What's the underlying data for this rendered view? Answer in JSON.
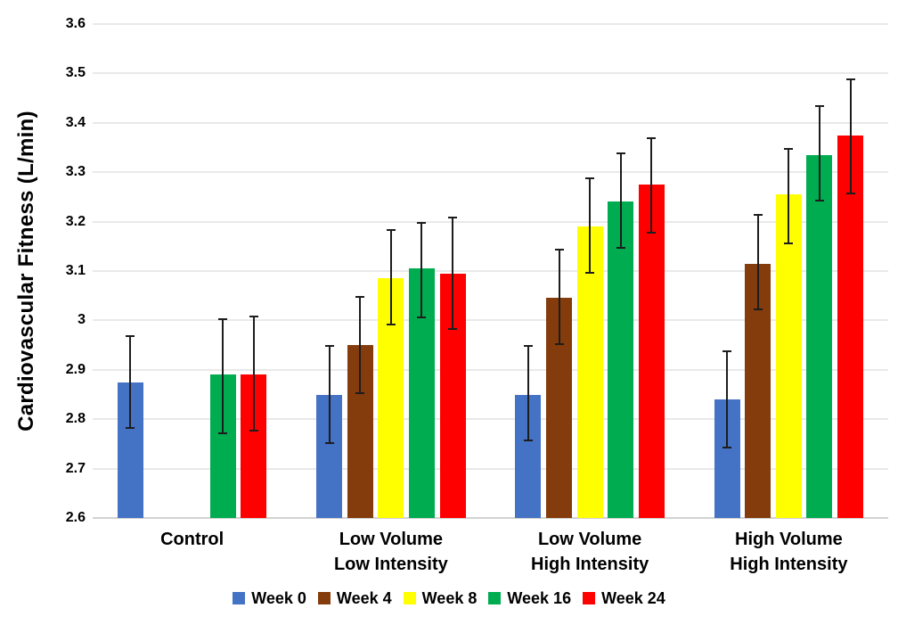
{
  "chart_data": {
    "type": "bar",
    "title": "",
    "ylabel": "Cardiovascular Fitness (L/min)",
    "xlabel": "",
    "ylim": [
      2.6,
      3.6
    ],
    "ytick_step": 0.1,
    "yticks": [
      "3.6",
      "3.5",
      "3.4",
      "3.3",
      "3.2",
      "3.1",
      "3",
      "2.9",
      "2.8",
      "2.7",
      "2.6"
    ],
    "grid": true,
    "legend_position": "bottom",
    "error_bars": true,
    "categories": [
      [
        "Control"
      ],
      [
        "Low Volume",
        "Low Intensity"
      ],
      [
        "Low Volume",
        "High Intensity"
      ],
      [
        "High Volume",
        "High Intensity"
      ]
    ],
    "series": [
      {
        "name": "Week 0",
        "color": "#4472C4",
        "values": [
          2.875,
          2.85,
          2.85,
          2.84
        ],
        "err_low": [
          2.78,
          2.75,
          2.755,
          2.74
        ],
        "err_high": [
          2.97,
          2.95,
          2.95,
          2.94
        ]
      },
      {
        "name": "Week 4",
        "color": "#843C0C",
        "values": [
          null,
          2.95,
          3.045,
          3.115
        ],
        "err_low": [
          null,
          2.85,
          2.95,
          3.02
        ],
        "err_high": [
          null,
          3.05,
          3.145,
          3.215
        ]
      },
      {
        "name": "Week 8",
        "color": "#FFFF00",
        "values": [
          null,
          3.085,
          3.19,
          3.255
        ],
        "err_low": [
          null,
          2.99,
          3.095,
          3.155
        ],
        "err_high": [
          null,
          3.185,
          3.29,
          3.35
        ]
      },
      {
        "name": "Week 16",
        "color": "#00AC50",
        "values": [
          2.89,
          3.105,
          3.24,
          3.335
        ],
        "err_low": [
          2.77,
          3.005,
          3.145,
          3.24
        ],
        "err_high": [
          3.005,
          3.2,
          3.34,
          3.435
        ]
      },
      {
        "name": "Week 24",
        "color": "#FF0000",
        "values": [
          2.89,
          3.095,
          3.275,
          3.375
        ],
        "err_low": [
          2.775,
          2.98,
          3.175,
          3.255
        ],
        "err_high": [
          3.01,
          3.21,
          3.37,
          3.49
        ]
      }
    ]
  }
}
